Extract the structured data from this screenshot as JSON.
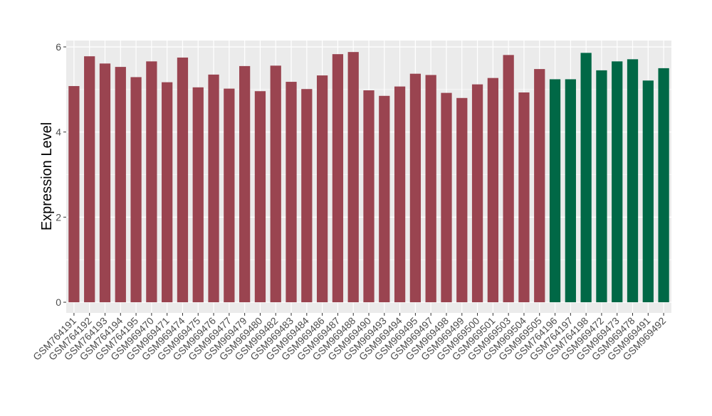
{
  "chart_data": {
    "type": "bar",
    "title": "",
    "xlabel": "",
    "ylabel": "Expression Level",
    "ylim": [
      -0.25,
      6.15
    ],
    "yticks": [
      0,
      2,
      4,
      6
    ],
    "grid": true,
    "categories": [
      "GSM764191",
      "GSM764192",
      "GSM764193",
      "GSM764194",
      "GSM764195",
      "GSM969470",
      "GSM969471",
      "GSM969474",
      "GSM969475",
      "GSM969476",
      "GSM969477",
      "GSM969479",
      "GSM969480",
      "GSM969482",
      "GSM969483",
      "GSM969484",
      "GSM969486",
      "GSM969487",
      "GSM969488",
      "GSM969490",
      "GSM969493",
      "GSM969494",
      "GSM969495",
      "GSM969497",
      "GSM969498",
      "GSM969499",
      "GSM969500",
      "GSM969501",
      "GSM969503",
      "GSM969504",
      "GSM969505",
      "GSM764196",
      "GSM764197",
      "GSM764198",
      "GSM969472",
      "GSM969473",
      "GSM969478",
      "GSM969491",
      "GSM969492"
    ],
    "values": [
      5.08,
      5.78,
      5.61,
      5.53,
      5.29,
      5.66,
      5.17,
      5.75,
      5.05,
      5.35,
      5.02,
      5.55,
      4.96,
      5.56,
      5.18,
      5.01,
      5.33,
      5.83,
      5.88,
      4.98,
      4.85,
      5.07,
      5.37,
      5.34,
      4.92,
      4.8,
      5.12,
      5.27,
      5.81,
      4.93,
      5.48,
      5.24,
      5.24,
      5.86,
      5.45,
      5.66,
      5.71,
      5.21,
      5.5
    ],
    "group_colors": [
      "#9a4450",
      "#9a4450",
      "#9a4450",
      "#9a4450",
      "#9a4450",
      "#9a4450",
      "#9a4450",
      "#9a4450",
      "#9a4450",
      "#9a4450",
      "#9a4450",
      "#9a4450",
      "#9a4450",
      "#9a4450",
      "#9a4450",
      "#9a4450",
      "#9a4450",
      "#9a4450",
      "#9a4450",
      "#9a4450",
      "#9a4450",
      "#9a4450",
      "#9a4450",
      "#9a4450",
      "#9a4450",
      "#9a4450",
      "#9a4450",
      "#9a4450",
      "#9a4450",
      "#9a4450",
      "#9a4450",
      "#006846",
      "#006846",
      "#006846",
      "#006846",
      "#006846",
      "#006846",
      "#006846",
      "#006846"
    ],
    "panel_background": "#ebebeb",
    "gridline_color": "#ffffff"
  }
}
